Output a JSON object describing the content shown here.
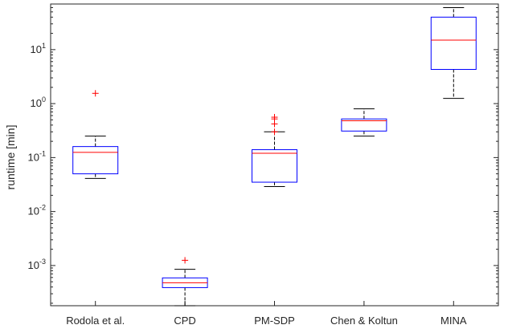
{
  "chart_data": {
    "type": "box",
    "ylabel": "runtime [min]",
    "yscale": "log",
    "ylim": [
      0.00018,
      70
    ],
    "yticks": [
      {
        "value": 0.001,
        "base": "10",
        "exp": "-3"
      },
      {
        "value": 0.01,
        "base": "10",
        "exp": "-2"
      },
      {
        "value": 0.1,
        "base": "10",
        "exp": "-1"
      },
      {
        "value": 1,
        "base": "10",
        "exp": "0"
      },
      {
        "value": 10,
        "base": "10",
        "exp": "1"
      }
    ],
    "categories": [
      "Rodola et al.",
      "CPD",
      "PM-SDP",
      "Chen & Koltun",
      "MINA"
    ],
    "boxes": [
      {
        "category": "Rodola et al.",
        "whisker_low": 0.041,
        "q1": 0.05,
        "median": 0.125,
        "q3": 0.16,
        "whisker_high": 0.25,
        "outliers": [
          1.55
        ]
      },
      {
        "category": "CPD",
        "whisker_low": 0.00018,
        "q1": 0.00039,
        "median": 0.00048,
        "q3": 0.00059,
        "whisker_high": 0.00085,
        "outliers": [
          0.00125
        ]
      },
      {
        "category": "PM-SDP",
        "whisker_low": 0.029,
        "q1": 0.035,
        "median": 0.12,
        "q3": 0.14,
        "whisker_high": 0.3,
        "outliers": [
          0.3,
          0.42,
          0.52,
          0.56
        ]
      },
      {
        "category": "Chen & Koltun",
        "whisker_low": 0.25,
        "q1": 0.31,
        "median": 0.48,
        "q3": 0.52,
        "whisker_high": 0.8,
        "outliers": []
      },
      {
        "category": "MINA",
        "whisker_low": 1.25,
        "q1": 4.3,
        "median": 15,
        "q3": 40,
        "whisker_high": 60,
        "outliers": []
      }
    ],
    "colors": {
      "box": "#0000ff",
      "median": "#ff0000",
      "whisker": "#000000",
      "outlier": "#ff0000"
    },
    "grid": false,
    "legend": "none"
  }
}
